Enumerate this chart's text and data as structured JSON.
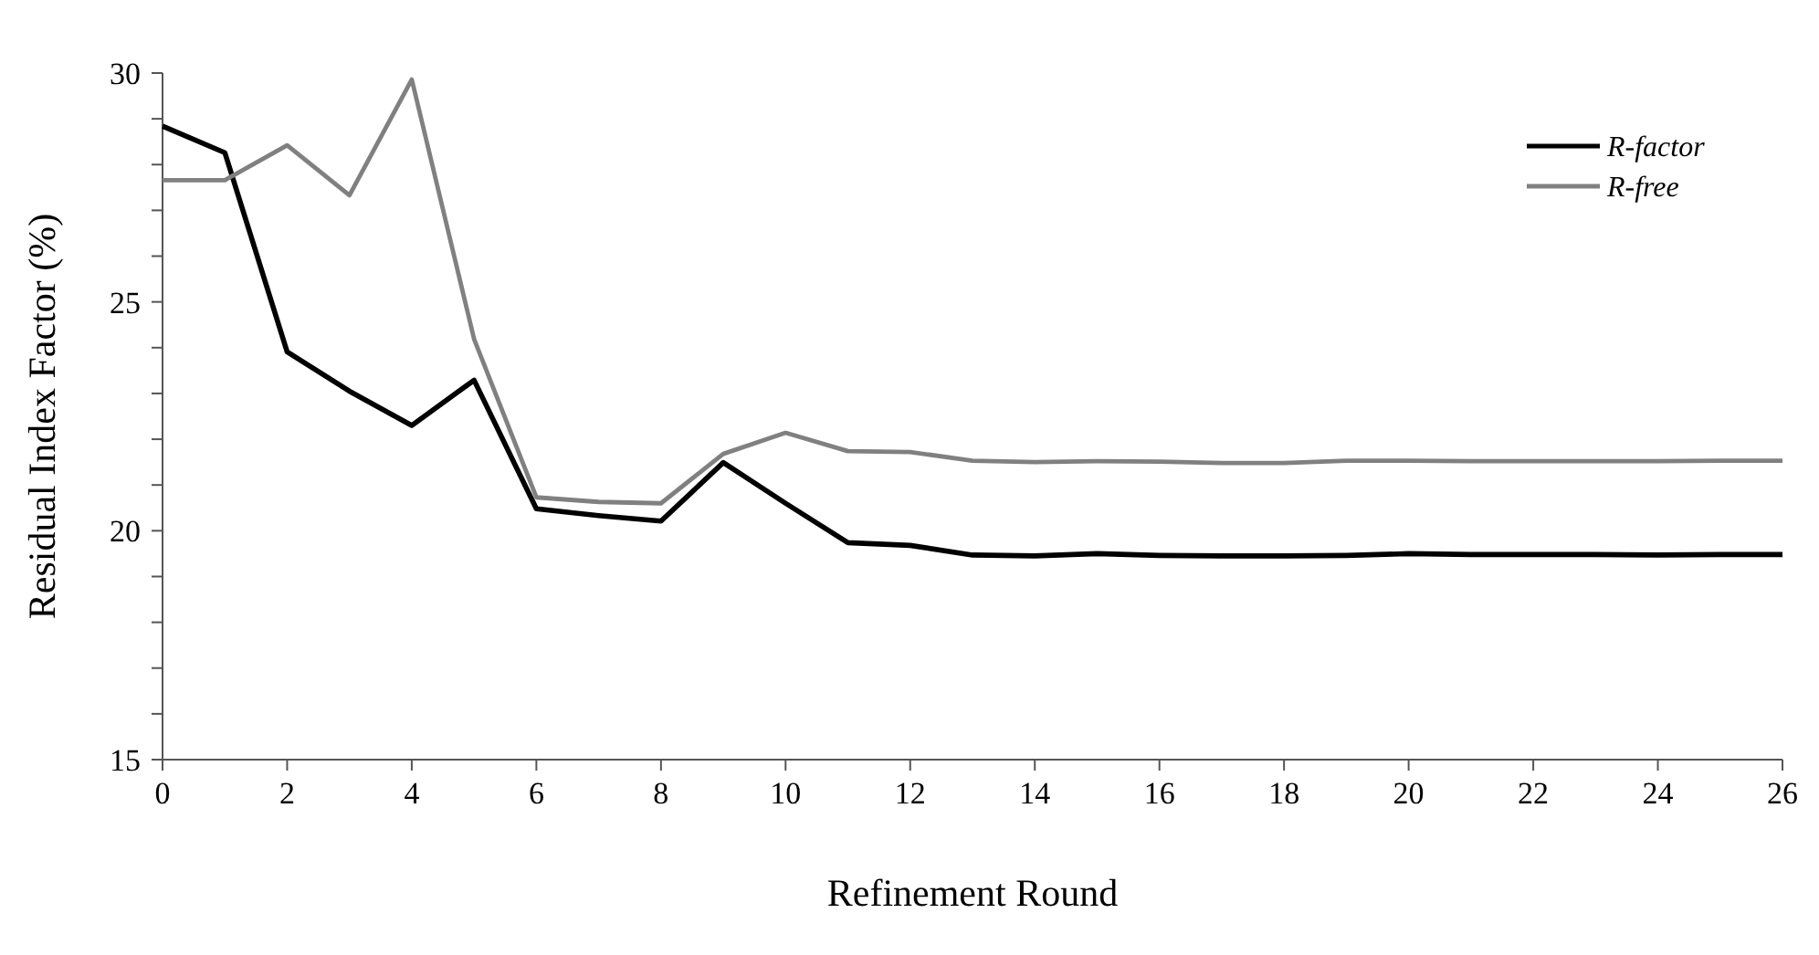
{
  "chart_data": {
    "type": "line",
    "xlabel": "Refinement Round",
    "ylabel": "Residual Index Factor (%)",
    "x": [
      0,
      1,
      2,
      3,
      4,
      5,
      6,
      7,
      8,
      9,
      10,
      11,
      12,
      13,
      14,
      15,
      16,
      17,
      18,
      19,
      20,
      21,
      22,
      23,
      24,
      25,
      26
    ],
    "series": [
      {
        "name": "R-factor",
        "color": "#000000",
        "values": [
          28.84,
          28.26,
          23.91,
          23.05,
          22.3,
          23.29,
          20.48,
          20.33,
          20.21,
          21.49,
          20.6,
          19.74,
          19.68,
          19.47,
          19.45,
          19.5,
          19.46,
          19.45,
          19.45,
          19.46,
          19.5,
          19.48,
          19.48,
          19.48,
          19.47,
          19.48,
          19.48
        ]
      },
      {
        "name": "R-free",
        "color": "#808080",
        "values": [
          27.66,
          27.66,
          28.42,
          27.33,
          29.86,
          24.19,
          20.73,
          20.63,
          20.6,
          21.68,
          22.14,
          21.74,
          21.72,
          21.53,
          21.5,
          21.52,
          21.51,
          21.48,
          21.48,
          21.53,
          21.53,
          21.52,
          21.52,
          21.52,
          21.52,
          21.53,
          21.53
        ]
      }
    ],
    "xlim": [
      0,
      26
    ],
    "xticks": [
      0,
      2,
      4,
      6,
      8,
      10,
      12,
      14,
      16,
      18,
      20,
      22,
      24,
      26
    ],
    "ylim": [
      15,
      30
    ],
    "yticks": [
      15,
      {
        "value": 16,
        "label": null
      },
      {
        "value": 17,
        "label": null
      },
      {
        "value": 18,
        "label": null
      },
      {
        "value": 19,
        "label": null
      },
      20,
      {
        "value": 21,
        "label": null
      },
      {
        "value": 22,
        "label": null
      },
      {
        "value": 23,
        "label": null
      },
      {
        "value": 24,
        "label": null
      },
      25,
      {
        "value": 26,
        "label": null
      },
      {
        "value": 27,
        "label": null
      },
      {
        "value": 28,
        "label": null
      },
      {
        "value": 29,
        "label": null
      },
      30
    ],
    "legend": "top right",
    "marker": "none",
    "line_style": "solid"
  }
}
